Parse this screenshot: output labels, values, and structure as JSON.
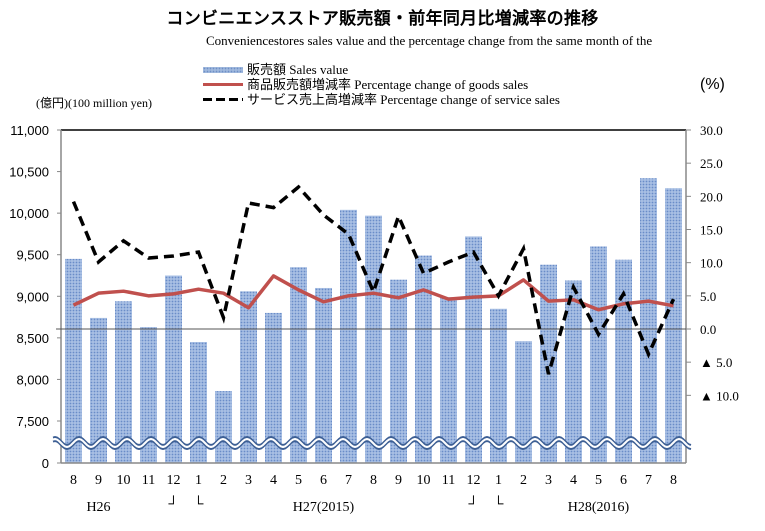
{
  "chart_data": {
    "type": "bar+line",
    "title": "コンビニエンスストア販売額・前年同月比増減率の推移",
    "subtitle": "Conveniencestores sales value and the percentage change from the same month of the",
    "left_axis": {
      "label": "(億円)(100 million yen)",
      "ticks": [
        "0",
        "7,500",
        "8,000",
        "8,500",
        "9,000",
        "9,500",
        "10,000",
        "10,500",
        "11,000"
      ],
      "tick_values": [
        0,
        7500,
        8000,
        8500,
        9000,
        9500,
        10000,
        10500,
        11000
      ],
      "range": [
        7000,
        11000
      ],
      "broken_axis": true
    },
    "right_axis": {
      "label": "(%)",
      "ticks": [
        "▲ 10.0",
        "▲ 5.0",
        "0.0",
        "5.0",
        "10.0",
        "15.0",
        "20.0",
        "25.0",
        "30.0"
      ],
      "tick_values": [
        -10,
        -5,
        0,
        5,
        10,
        15,
        20,
        25,
        30
      ],
      "range": [
        -10,
        30
      ]
    },
    "categories": [
      "8",
      "9",
      "10",
      "11",
      "12",
      "1",
      "2",
      "3",
      "4",
      "5",
      "6",
      "7",
      "8",
      "9",
      "10",
      "11",
      "12",
      "1",
      "2",
      "3",
      "4",
      "5",
      "6",
      "7",
      "8"
    ],
    "x_groups": [
      {
        "label": "H26",
        "at_index": 1
      },
      {
        "label": "H27(2015)",
        "at_index": 10
      },
      {
        "label": "H28(2016)",
        "at_index": 21
      }
    ],
    "year_break_marks": [
      {
        "left": "┘",
        "right": "└",
        "after_index": 4
      },
      {
        "left": "┘",
        "right": "└",
        "after_index": 16
      }
    ],
    "series": [
      {
        "name": "販売額 Sales value",
        "type": "bar",
        "axis": "left",
        "color": "#7f9fd4",
        "values": [
          9450,
          8740,
          8940,
          8630,
          9250,
          8450,
          7860,
          9060,
          8800,
          9350,
          9100,
          10040,
          9970,
          9200,
          9490,
          8990,
          9720,
          8850,
          8460,
          9380,
          9190,
          9600,
          9440,
          10420,
          10300
        ]
      },
      {
        "name": "商品販売額増減率 Percentage change of goods sales",
        "type": "line",
        "axis": "right",
        "color": "#c0504d",
        "values": [
          3.6,
          5.4,
          5.7,
          5.0,
          5.3,
          6.0,
          5.4,
          3.2,
          8.0,
          5.9,
          4.1,
          5.0,
          5.4,
          4.7,
          5.9,
          4.5,
          4.8,
          5.0,
          7.4,
          4.2,
          4.4,
          2.9,
          3.8,
          4.2,
          3.5
        ]
      },
      {
        "name": "サービス売上高増減率 Percentage change of service sales",
        "type": "line-dashed",
        "axis": "right",
        "color": "#000000",
        "values": [
          19.2,
          10.1,
          13.3,
          10.7,
          11.0,
          11.6,
          1.7,
          19.0,
          18.3,
          21.4,
          17.2,
          14.3,
          5.6,
          17.0,
          8.4,
          10.1,
          11.6,
          5.0,
          12.1,
          -6.8,
          6.3,
          -0.8,
          5.3,
          -3.8,
          4.5
        ]
      }
    ],
    "legend_position": "top-center",
    "grid": false
  },
  "legend": {
    "sales": "販売額 Sales value",
    "goods": "商品販売額増減率 Percentage change of goods sales",
    "service": "サービス売上高増減率 Percentage change of service sales"
  },
  "units": {
    "left": "(億円)(100 million yen)",
    "right": "(%)"
  }
}
